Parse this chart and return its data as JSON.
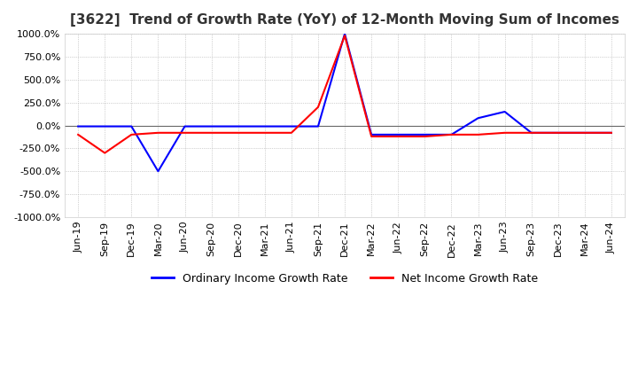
{
  "title": "[3622]  Trend of Growth Rate (YoY) of 12-Month Moving Sum of Incomes",
  "title_fontsize": 11,
  "ylim": [
    -1000,
    1000
  ],
  "yticks": [
    1000,
    750,
    500,
    250,
    0,
    -250,
    -500,
    -750,
    -1000
  ],
  "background_color": "#ffffff",
  "plot_bg_color": "#ffffff",
  "grid_color": "#aaaaaa",
  "legend_labels": [
    "Ordinary Income Growth Rate",
    "Net Income Growth Rate"
  ],
  "legend_colors": [
    "#0000ff",
    "#ff0000"
  ],
  "x_labels": [
    "Jun-19",
    "Sep-19",
    "Dec-19",
    "Mar-20",
    "Jun-20",
    "Sep-20",
    "Dec-20",
    "Mar-21",
    "Jun-21",
    "Sep-21",
    "Dec-21",
    "Mar-22",
    "Jun-22",
    "Sep-22",
    "Dec-22",
    "Mar-23",
    "Jun-23",
    "Sep-23",
    "Dec-23",
    "Mar-24",
    "Jun-24"
  ],
  "ordinary_income": [
    -10,
    -10,
    -10,
    -500,
    -10,
    -10,
    -10,
    -10,
    -10,
    -10,
    1000,
    -100,
    -100,
    -100,
    -100,
    80,
    150,
    -80,
    -80,
    -80,
    -80
  ],
  "net_income": [
    -100,
    -300,
    -100,
    -80,
    -80,
    -80,
    -80,
    -80,
    -80,
    200,
    980,
    -120,
    -120,
    -120,
    -100,
    -100,
    -80,
    -80,
    -80,
    -80,
    -80
  ]
}
